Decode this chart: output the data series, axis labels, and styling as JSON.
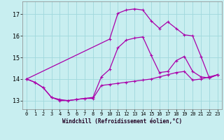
{
  "background_color": "#c8eef0",
  "grid_color": "#a0d8dc",
  "line_color": "#aa00aa",
  "xlabel": "Windchill (Refroidissement éolien,°C)",
  "xlim": [
    -0.5,
    23.5
  ],
  "ylim": [
    12.6,
    17.6
  ],
  "yticks": [
    13,
    14,
    15,
    16,
    17
  ],
  "xticks": [
    0,
    1,
    2,
    3,
    4,
    5,
    6,
    7,
    8,
    9,
    10,
    11,
    12,
    13,
    14,
    15,
    16,
    17,
    18,
    19,
    20,
    21,
    22,
    23
  ],
  "series1_x": [
    0,
    1,
    2,
    3,
    4,
    5,
    6,
    7,
    8,
    9,
    10,
    11,
    12,
    13,
    14,
    15,
    16,
    17,
    18,
    19,
    20,
    21,
    22,
    23
  ],
  "series1_y": [
    14.0,
    13.85,
    13.6,
    13.15,
    13.0,
    13.0,
    13.05,
    13.1,
    13.1,
    13.7,
    13.75,
    13.8,
    13.85,
    13.9,
    13.95,
    14.0,
    14.1,
    14.2,
    14.3,
    14.35,
    13.95,
    14.0,
    14.1,
    14.2
  ],
  "series2_x": [
    0,
    1,
    2,
    3,
    4,
    5,
    6,
    7,
    8,
    9,
    10,
    11,
    12,
    13,
    14,
    15,
    16,
    17,
    18,
    19,
    20,
    21,
    22,
    23
  ],
  "series2_y": [
    14.0,
    13.85,
    13.6,
    13.15,
    13.05,
    13.0,
    13.05,
    13.1,
    13.15,
    14.1,
    14.45,
    15.45,
    15.8,
    15.9,
    15.95,
    15.1,
    14.3,
    14.35,
    14.85,
    15.05,
    14.35,
    14.1,
    14.05,
    14.2
  ],
  "series3_x": [
    0,
    10,
    11,
    12,
    13,
    14,
    15,
    16,
    17,
    18,
    19,
    20,
    21,
    22,
    23
  ],
  "series3_y": [
    14.0,
    15.85,
    17.05,
    17.2,
    17.25,
    17.2,
    16.7,
    16.35,
    16.65,
    16.35,
    16.05,
    16.0,
    15.05,
    14.05,
    14.2
  ]
}
